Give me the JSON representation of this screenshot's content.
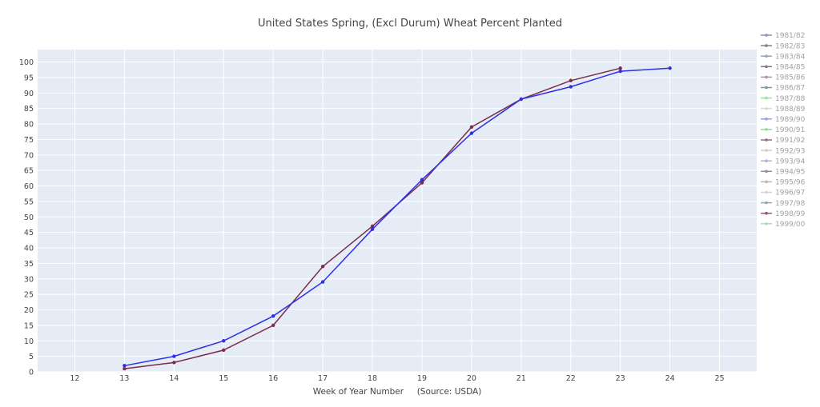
{
  "chart_data": {
    "type": "line",
    "title": "United States Spring, (Excl Durum) Wheat Percent Planted",
    "xlabel": "Week of Year Number     (Source: USDA)",
    "ylabel": "",
    "xlim": [
      11.25,
      25.75
    ],
    "ylim": [
      0,
      104
    ],
    "x_ticks": [
      12,
      13,
      14,
      15,
      16,
      17,
      18,
      19,
      20,
      21,
      22,
      23,
      24,
      25
    ],
    "y_ticks": [
      0,
      5,
      10,
      15,
      20,
      25,
      30,
      35,
      40,
      45,
      50,
      55,
      60,
      65,
      70,
      75,
      80,
      85,
      90,
      95,
      100
    ],
    "grid": true,
    "legend_position": "right",
    "legend_entries": [
      {
        "name": "1981/82",
        "color": "#8f8fbf"
      },
      {
        "name": "1982/83",
        "color": "#8a7a86"
      },
      {
        "name": "1983/84",
        "color": "#9aa0c0"
      },
      {
        "name": "1984/85",
        "color": "#8a6f80"
      },
      {
        "name": "1985/86",
        "color": "#a795a8"
      },
      {
        "name": "1986/87",
        "color": "#7f9a92"
      },
      {
        "name": "1987/88",
        "color": "#9fe0a0"
      },
      {
        "name": "1988/89",
        "color": "#d8d8d8"
      },
      {
        "name": "1989/90",
        "color": "#9a9ae6"
      },
      {
        "name": "1990/91",
        "color": "#8fdc8f"
      },
      {
        "name": "1991/92",
        "color": "#8a7080"
      },
      {
        "name": "1992/93",
        "color": "#d0d0d0"
      },
      {
        "name": "1993/94",
        "color": "#b0b0d8"
      },
      {
        "name": "1994/95",
        "color": "#9888a0"
      },
      {
        "name": "1995/96",
        "color": "#c0b8a8"
      },
      {
        "name": "1996/97",
        "color": "#d4d4d4"
      },
      {
        "name": "1997/98",
        "color": "#94a8a8"
      },
      {
        "name": "1998/99",
        "color": "#8a5a70"
      },
      {
        "name": "1999/00",
        "color": "#a8dcc0"
      }
    ],
    "series": [
      {
        "color": "#7b2d4a",
        "points": [
          [
            13,
            1
          ],
          [
            14,
            3
          ],
          [
            15,
            7
          ],
          [
            16,
            15
          ],
          [
            17,
            34
          ],
          [
            18,
            47
          ],
          [
            19,
            61
          ],
          [
            20,
            79
          ],
          [
            21,
            88
          ],
          [
            22,
            94
          ],
          [
            23,
            98
          ]
        ]
      },
      {
        "color": "#2f2fe8",
        "points": [
          [
            13,
            2
          ],
          [
            14,
            5
          ],
          [
            15,
            10
          ],
          [
            16,
            18
          ],
          [
            17,
            29
          ],
          [
            18,
            46
          ],
          [
            19,
            62
          ],
          [
            20,
            77
          ],
          [
            21,
            88
          ],
          [
            22,
            92
          ],
          [
            23,
            97
          ],
          [
            24,
            98
          ]
        ]
      }
    ],
    "colors": {
      "plot_background": "#e5ecf6",
      "grid": "#ffffff",
      "text": "#444444"
    }
  }
}
